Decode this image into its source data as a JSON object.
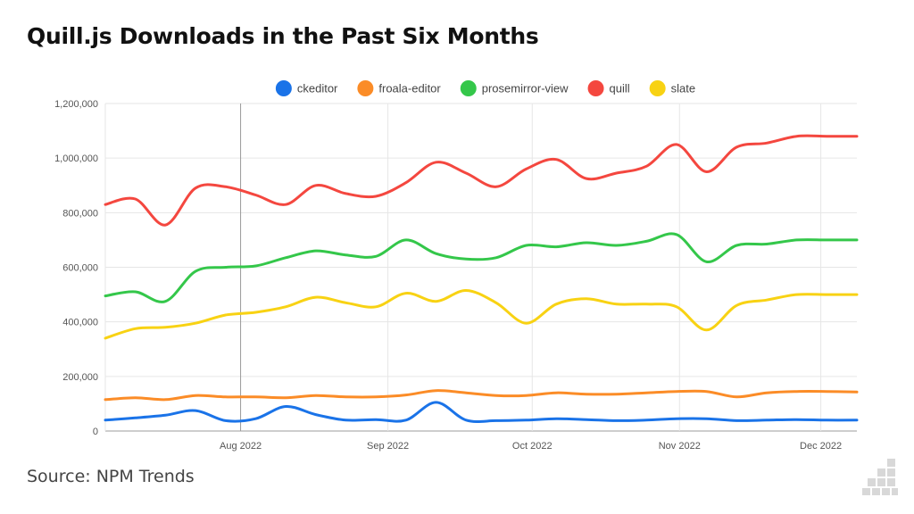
{
  "header": {
    "title": "Quill.js Downloads in the Past Six Months"
  },
  "footer": {
    "source": "Source: NPM Trends"
  },
  "chart_data": {
    "type": "line",
    "title": "Quill.js Downloads in the Past Six Months",
    "xlabel": "",
    "ylabel": "",
    "ylim": [
      0,
      1200000
    ],
    "yticks": [
      0,
      200000,
      400000,
      600000,
      800000,
      1000000,
      1200000
    ],
    "ytick_labels": [
      "0",
      "200,000",
      "400,000",
      "600,000",
      "800,000",
      "1,000,000",
      "1,200,000"
    ],
    "xlim": [
      0,
      25
    ],
    "xticks": [
      {
        "x": 4.5,
        "label": "Aug 2022"
      },
      {
        "x": 9.4,
        "label": "Sep 2022"
      },
      {
        "x": 14.2,
        "label": "Oct 2022"
      },
      {
        "x": 19.1,
        "label": "Nov 2022"
      },
      {
        "x": 23.8,
        "label": "Dec 2022"
      }
    ],
    "x": [
      0,
      1,
      2,
      3,
      4,
      5,
      6,
      7,
      8,
      9,
      10,
      11,
      12,
      13,
      14,
      15,
      16,
      17,
      18,
      19,
      20,
      21,
      22,
      23,
      24,
      25
    ],
    "legend_position": "top",
    "series": [
      {
        "name": "ckeditor",
        "color": "#1a73e8",
        "values": [
          40000,
          48000,
          58000,
          75000,
          38000,
          45000,
          90000,
          60000,
          40000,
          42000,
          40000,
          105000,
          40000,
          38000,
          40000,
          45000,
          42000,
          38000,
          40000,
          45000,
          45000,
          38000,
          40000,
          42000,
          40000,
          40000
        ]
      },
      {
        "name": "froala-editor",
        "color": "#fb8c27",
        "values": [
          115000,
          122000,
          115000,
          130000,
          125000,
          125000,
          122000,
          130000,
          125000,
          125000,
          132000,
          148000,
          140000,
          130000,
          130000,
          140000,
          135000,
          135000,
          140000,
          145000,
          145000,
          125000,
          140000,
          145000,
          145000,
          143000
        ]
      },
      {
        "name": "prosemirror-view",
        "color": "#34c74a",
        "values": [
          495000,
          510000,
          475000,
          585000,
          600000,
          605000,
          635000,
          660000,
          645000,
          640000,
          700000,
          650000,
          630000,
          635000,
          680000,
          675000,
          690000,
          680000,
          695000,
          720000,
          620000,
          680000,
          685000,
          700000,
          700000,
          700000
        ]
      },
      {
        "name": "quill",
        "color": "#f4473f",
        "values": [
          830000,
          850000,
          755000,
          890000,
          895000,
          865000,
          830000,
          900000,
          870000,
          860000,
          910000,
          985000,
          945000,
          895000,
          960000,
          995000,
          925000,
          945000,
          970000,
          1050000,
          950000,
          1040000,
          1055000,
          1080000,
          1080000,
          1080000
        ]
      },
      {
        "name": "slate",
        "color": "#f8d213",
        "values": [
          340000,
          375000,
          380000,
          395000,
          425000,
          435000,
          455000,
          490000,
          470000,
          455000,
          505000,
          475000,
          515000,
          470000,
          395000,
          465000,
          485000,
          465000,
          465000,
          455000,
          370000,
          460000,
          480000,
          500000,
          500000,
          500000
        ]
      }
    ]
  }
}
